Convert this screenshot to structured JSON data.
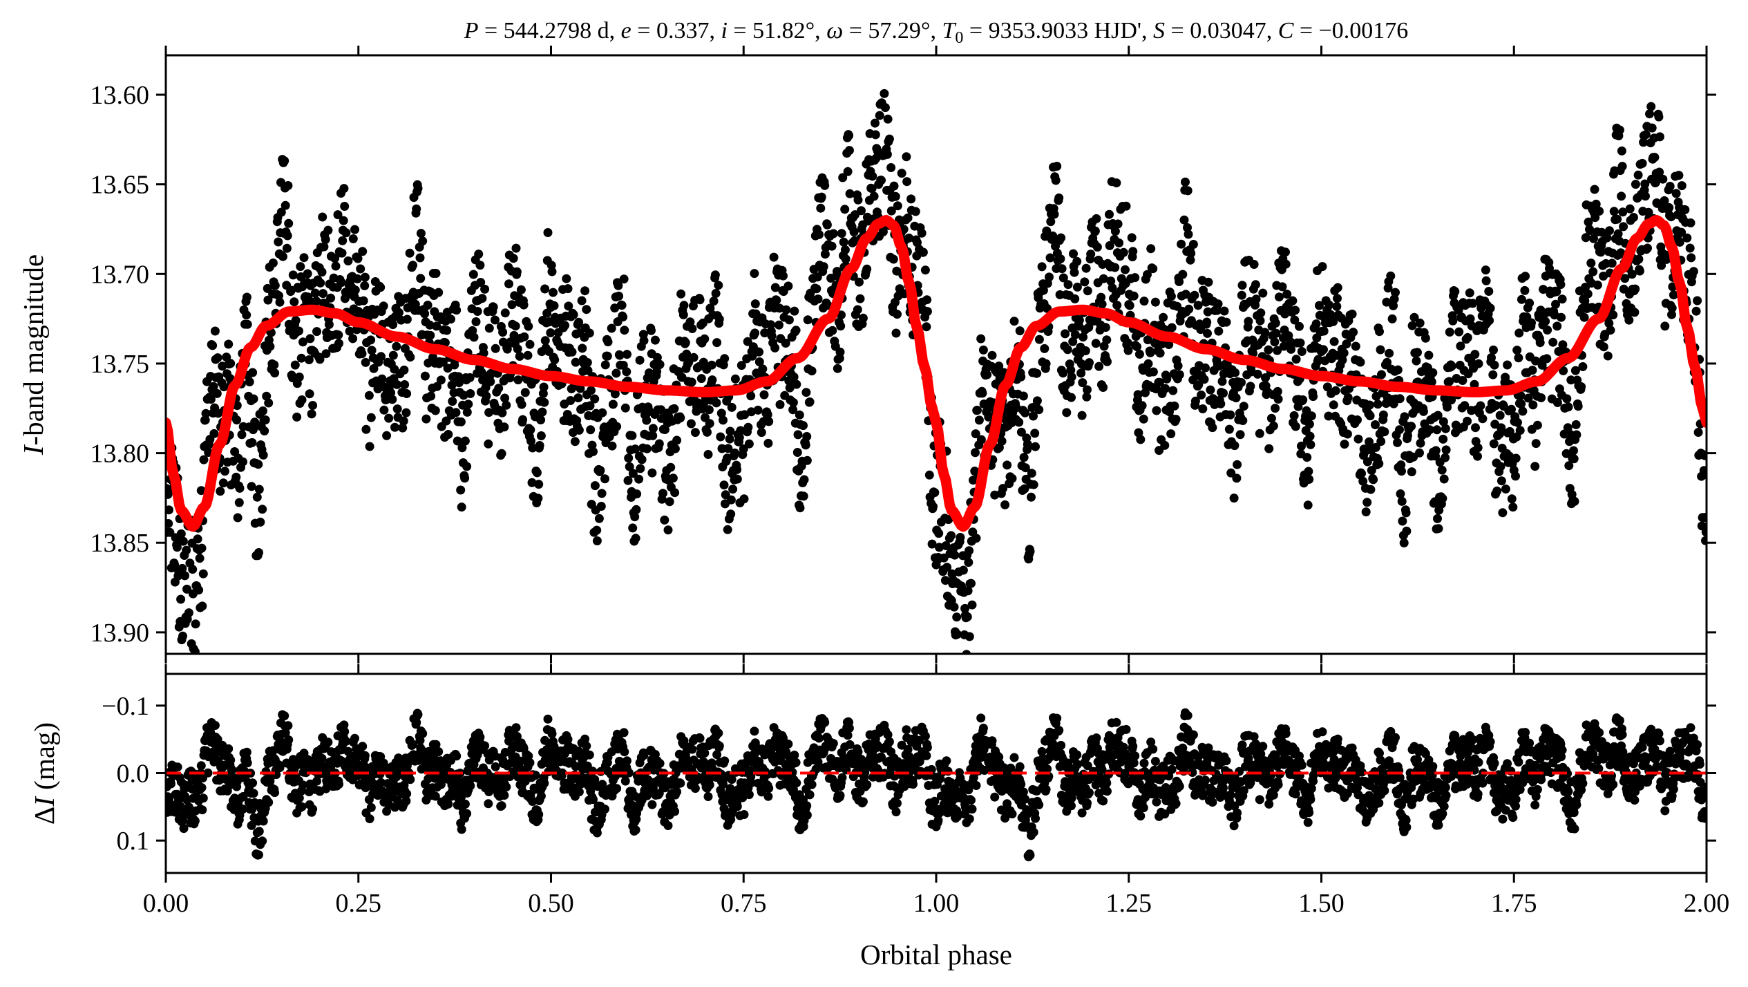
{
  "chart_data": [
    {
      "type": "scatter",
      "panel": "top",
      "title": "P = 544.2798 d, e = 0.337, i = 51.82°, ω = 57.29°, T0 = 9353.9033 HJD', S = 0.03047, C = −0.00176",
      "title_parts": {
        "p": "P",
        "p_val": " = 544.2798 d, ",
        "e": "e",
        "e_val": " = 0.337, ",
        "i": "i",
        "i_val": " = 51.82°, ",
        "w": "ω",
        "w_val": " = 57.29°, ",
        "t0": "T",
        "t0_sub": "0",
        "t0_val": " = 9353.9033 HJD', ",
        "s": "S",
        "s_val": " = 0.03047, ",
        "c": "C",
        "c_val": " = −0.00176"
      },
      "ylabel_italic": "I",
      "ylabel_rest": "-band magnitude",
      "xlim": [
        0.0,
        2.0
      ],
      "ylim": [
        13.578,
        13.912
      ],
      "y_inverted": true,
      "yticks": [
        13.6,
        13.65,
        13.7,
        13.75,
        13.8,
        13.85,
        13.9
      ],
      "ytick_labels": [
        "13.60",
        "13.65",
        "13.70",
        "13.75",
        "13.80",
        "13.85",
        "13.90"
      ],
      "data_color": "#000000",
      "model": {
        "color": "#ff0000",
        "description": "orbital light curve model, repeats with period 1 in phase",
        "phase": [
          0.0,
          0.01,
          0.02,
          0.035,
          0.05,
          0.07,
          0.09,
          0.11,
          0.13,
          0.16,
          0.19,
          0.22,
          0.25,
          0.3,
          0.35,
          0.4,
          0.45,
          0.5,
          0.55,
          0.6,
          0.65,
          0.7,
          0.74,
          0.78,
          0.82,
          0.86,
          0.89,
          0.91,
          0.925,
          0.935,
          0.945,
          0.955,
          0.965,
          0.975,
          0.985,
          0.995,
          1.0
        ],
        "mag": [
          13.783,
          13.812,
          13.832,
          13.841,
          13.83,
          13.795,
          13.762,
          13.741,
          13.729,
          13.721,
          13.72,
          13.722,
          13.727,
          13.735,
          13.742,
          13.748,
          13.753,
          13.757,
          13.76,
          13.763,
          13.765,
          13.766,
          13.765,
          13.76,
          13.747,
          13.725,
          13.697,
          13.68,
          13.672,
          13.67,
          13.673,
          13.685,
          13.705,
          13.73,
          13.752,
          13.775,
          13.783
        ]
      },
      "scatter_envelope_mag": 0.045
    },
    {
      "type": "scatter",
      "panel": "bottom",
      "xlabel": "Orbital phase",
      "ylabel_delta": "Δ",
      "ylabel_italic": "I",
      "ylabel_rest": " (mag)",
      "xlim": [
        0.0,
        2.0
      ],
      "ylim": [
        -0.147,
        0.148
      ],
      "y_inverted": true,
      "yticks": [
        -0.1,
        0.0,
        0.1
      ],
      "ytick_labels": [
        "−0.1",
        "0.0",
        "0.1"
      ],
      "xticks": [
        0.0,
        0.25,
        0.5,
        0.75,
        1.0,
        1.25,
        1.5,
        1.75,
        2.0
      ],
      "xtick_labels": [
        "0.00",
        "0.25",
        "0.50",
        "0.75",
        "1.00",
        "1.25",
        "1.50",
        "1.75",
        "2.00"
      ],
      "zero_line": {
        "value": 0.0,
        "color": "#ff0000",
        "style": "dashed"
      },
      "data_color": "#000000"
    }
  ]
}
